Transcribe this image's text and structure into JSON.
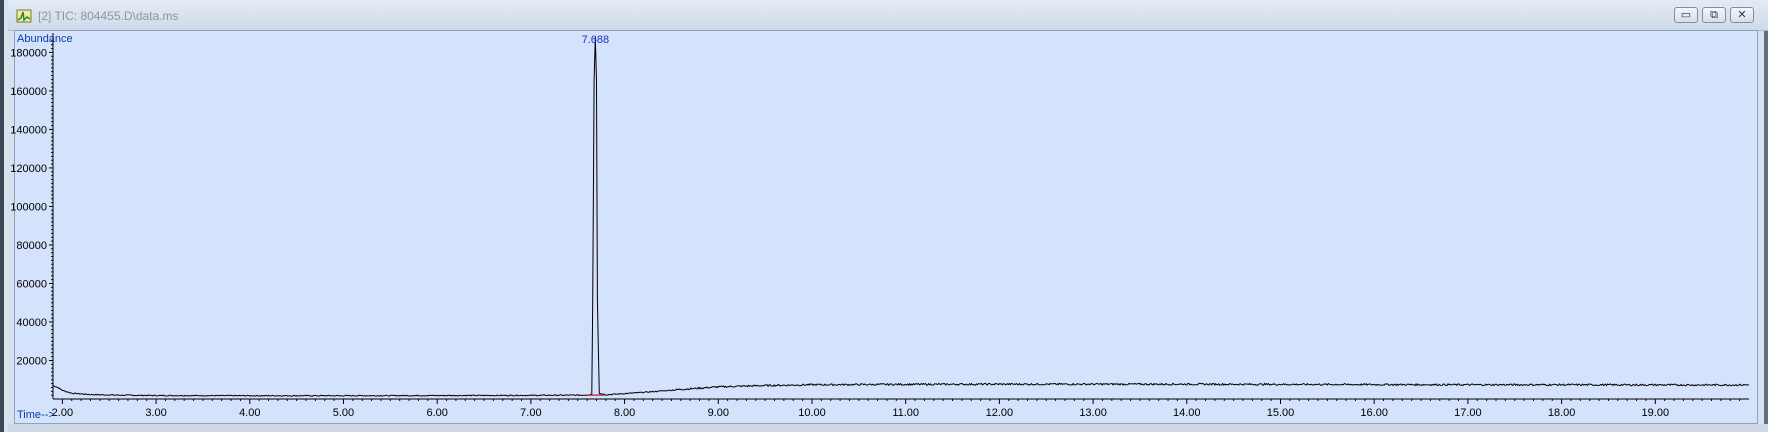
{
  "window": {
    "title": "[2] TIC: 804455.D\\data.ms",
    "controls": [
      "minimize",
      "restore",
      "close"
    ]
  },
  "chart_data": {
    "type": "line",
    "ylabel": "Abundance",
    "xlabel": "Time-->",
    "xlim": [
      1.9,
      20.0
    ],
    "ylim": [
      0,
      188000
    ],
    "x_ticks": [
      "2.00",
      "3.00",
      "4.00",
      "5.00",
      "6.00",
      "7.00",
      "8.00",
      "9.00",
      "10.00",
      "11.00",
      "12.00",
      "13.00",
      "14.00",
      "15.00",
      "16.00",
      "17.00",
      "18.00",
      "19.00"
    ],
    "y_ticks": [
      "20000",
      "40000",
      "60000",
      "80000",
      "100000",
      "120000",
      "140000",
      "160000",
      "180000"
    ],
    "peak_label": "7.688",
    "series": [
      {
        "color": "#000000",
        "points": [
          [
            1.9,
            7000
          ],
          [
            1.95,
            6000
          ],
          [
            2.0,
            4500
          ],
          [
            2.1,
            3000
          ],
          [
            2.3,
            2300
          ],
          [
            2.6,
            2000
          ],
          [
            3.0,
            1800
          ],
          [
            4.0,
            1700
          ],
          [
            5.0,
            1700
          ],
          [
            6.0,
            1800
          ],
          [
            7.0,
            1900
          ],
          [
            7.5,
            2000
          ],
          [
            7.62,
            2100
          ],
          [
            7.65,
            2600
          ],
          [
            7.66,
            50000
          ],
          [
            7.675,
            165000
          ],
          [
            7.688,
            188000
          ],
          [
            7.7,
            165000
          ],
          [
            7.71,
            52000
          ],
          [
            7.73,
            3000
          ],
          [
            7.8,
            2200
          ],
          [
            8.0,
            2800
          ],
          [
            8.3,
            3800
          ],
          [
            8.6,
            5000
          ],
          [
            9.0,
            6300
          ],
          [
            9.5,
            7000
          ],
          [
            10.0,
            7400
          ],
          [
            11.0,
            7600
          ],
          [
            12.0,
            7700
          ],
          [
            13.0,
            7700
          ],
          [
            14.0,
            7700
          ],
          [
            15.0,
            7600
          ],
          [
            16.0,
            7500
          ],
          [
            17.0,
            7400
          ],
          [
            18.0,
            7400
          ],
          [
            19.0,
            7300
          ],
          [
            20.0,
            7300
          ]
        ]
      }
    ]
  }
}
